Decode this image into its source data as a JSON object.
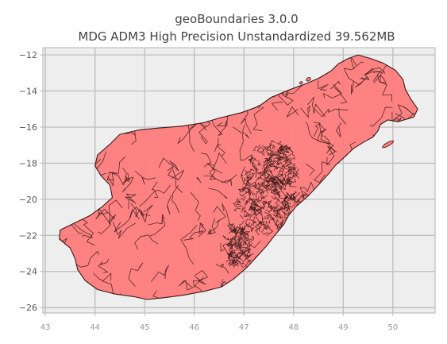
{
  "chart_data": {
    "type": "map",
    "title": "geoBoundaries 3.0.0",
    "subtitle": "MDG ADM3 High Precision Unstandardized 39.562MB",
    "xlim": [
      42.95,
      50.85
    ],
    "ylim": [
      -26.3,
      -11.6
    ],
    "x_ticks": [
      43,
      44,
      45,
      46,
      47,
      48,
      49,
      50
    ],
    "y_ticks": [
      -12,
      -14,
      -16,
      -18,
      -20,
      -22,
      -24,
      -26
    ],
    "grid": true,
    "legend": "none",
    "colors": {
      "fill": "#ff7b7b",
      "edge": "#3a1a1a",
      "plot_background": "#eeeeee",
      "grid": "#bdbdbd",
      "frame": "#bdbdbd"
    },
    "outline": [
      [
        49.3,
        -12.0
      ],
      [
        49.55,
        -12.2
      ],
      [
        49.8,
        -12.45
      ],
      [
        50.05,
        -12.85
      ],
      [
        50.2,
        -13.35
      ],
      [
        50.25,
        -13.9
      ],
      [
        50.35,
        -14.4
      ],
      [
        50.5,
        -15.0
      ],
      [
        50.42,
        -15.45
      ],
      [
        50.1,
        -15.7
      ],
      [
        49.9,
        -15.6
      ],
      [
        49.75,
        -15.85
      ],
      [
        49.7,
        -16.2
      ],
      [
        49.6,
        -16.55
      ],
      [
        49.4,
        -16.85
      ],
      [
        49.2,
        -17.2
      ],
      [
        49.05,
        -17.6
      ],
      [
        48.85,
        -18.1
      ],
      [
        48.7,
        -18.6
      ],
      [
        48.5,
        -19.2
      ],
      [
        48.3,
        -19.8
      ],
      [
        48.05,
        -20.4
      ],
      [
        47.9,
        -20.9
      ],
      [
        47.8,
        -21.4
      ],
      [
        47.62,
        -22.0
      ],
      [
        47.45,
        -22.6
      ],
      [
        47.25,
        -23.2
      ],
      [
        47.05,
        -23.8
      ],
      [
        46.8,
        -24.4
      ],
      [
        46.55,
        -24.85
      ],
      [
        46.2,
        -25.1
      ],
      [
        45.8,
        -25.3
      ],
      [
        45.4,
        -25.45
      ],
      [
        45.05,
        -25.55
      ],
      [
        44.8,
        -25.4
      ],
      [
        44.4,
        -25.25
      ],
      [
        44.05,
        -25.0
      ],
      [
        43.8,
        -24.5
      ],
      [
        43.65,
        -23.9
      ],
      [
        43.6,
        -23.3
      ],
      [
        43.5,
        -22.7
      ],
      [
        43.28,
        -22.2
      ],
      [
        43.3,
        -21.7
      ],
      [
        43.6,
        -21.3
      ],
      [
        43.9,
        -20.9
      ],
      [
        44.15,
        -20.4
      ],
      [
        44.35,
        -19.9
      ],
      [
        44.3,
        -19.2
      ],
      [
        44.12,
        -18.7
      ],
      [
        44.0,
        -18.15
      ],
      [
        44.05,
        -17.55
      ],
      [
        44.3,
        -16.95
      ],
      [
        44.5,
        -16.4
      ],
      [
        44.9,
        -16.15
      ],
      [
        45.3,
        -16.05
      ],
      [
        45.75,
        -15.95
      ],
      [
        46.2,
        -15.75
      ],
      [
        46.5,
        -15.5
      ],
      [
        46.95,
        -15.2
      ],
      [
        47.3,
        -14.85
      ],
      [
        47.55,
        -14.35
      ],
      [
        47.9,
        -13.95
      ],
      [
        48.25,
        -13.6
      ],
      [
        48.5,
        -13.3
      ],
      [
        48.75,
        -12.9
      ],
      [
        48.9,
        -12.5
      ],
      [
        49.1,
        -12.2
      ]
    ]
  }
}
